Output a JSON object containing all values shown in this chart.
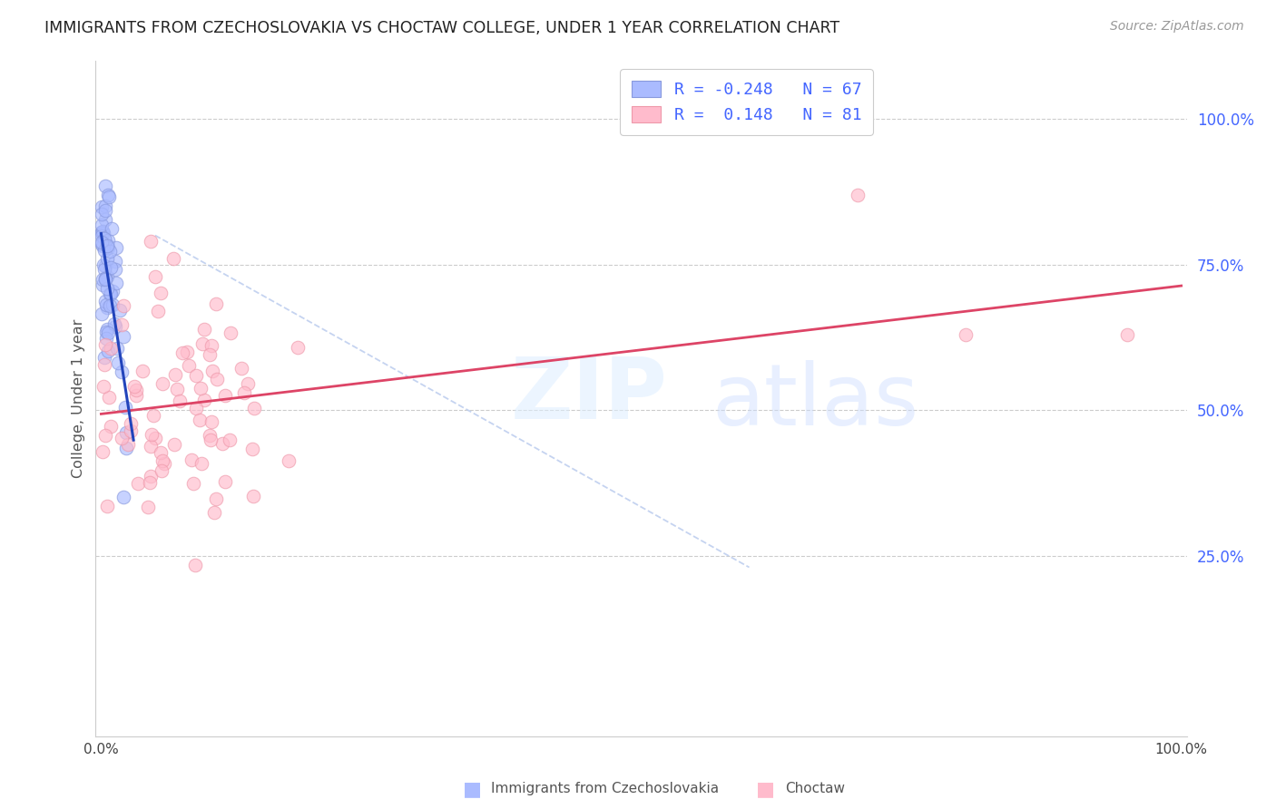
{
  "title": "IMMIGRANTS FROM CZECHOSLOVAKIA VS CHOCTAW COLLEGE, UNDER 1 YEAR CORRELATION CHART",
  "source_text": "Source: ZipAtlas.com",
  "ylabel": "College, Under 1 year",
  "blue_color_face": "#AABBFF",
  "blue_color_edge": "#8899DD",
  "pink_color_face": "#FFBBCC",
  "pink_color_edge": "#EE99AA",
  "blue_line_color": "#2244BB",
  "pink_line_color": "#DD4466",
  "diag_line_color": "#BBCCEE",
  "watermark_zip_color": "#DDEEFF",
  "watermark_atlas_color": "#CCDDFF",
  "right_tick_color": "#4466FF",
  "legend_text_color": "#333399",
  "legend_rn_color": "#4466FF",
  "axis_label_color": "#555555",
  "grid_color": "#CCCCCC"
}
